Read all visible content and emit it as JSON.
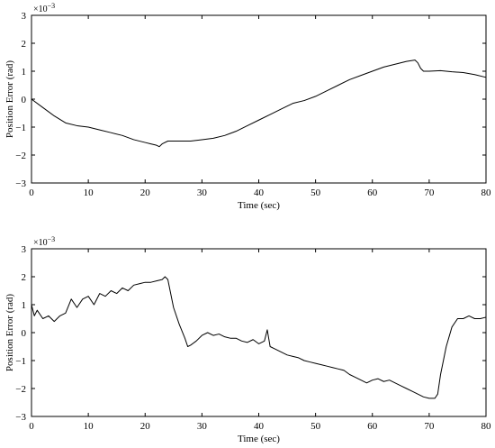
{
  "chart_data": [
    {
      "type": "line",
      "title": "",
      "xlabel": "Time (sec)",
      "ylabel": "Position Error (rad)",
      "y_multiplier": "×10",
      "y_exponent": "−3",
      "xlim": [
        0,
        80
      ],
      "ylim": [
        -3,
        3
      ],
      "xticks": [
        0,
        10,
        20,
        30,
        40,
        50,
        60,
        70,
        80
      ],
      "yticks": [
        -3,
        -2,
        -1,
        0,
        1,
        2,
        3
      ],
      "xtick_labels": [
        "0",
        "10",
        "20",
        "30",
        "40",
        "50",
        "60",
        "70",
        "80"
      ],
      "ytick_labels": [
        "−3",
        "−2",
        "−1",
        "0",
        "1",
        "2",
        "3"
      ],
      "grid": false,
      "series": [
        {
          "x": [
            0,
            2,
            4,
            6,
            8,
            10,
            12,
            14,
            16,
            18,
            20,
            21,
            22,
            22.5,
            23,
            24,
            26,
            28,
            30,
            32,
            34,
            36,
            38,
            40,
            42,
            44,
            46,
            48,
            50,
            52,
            54,
            56,
            58,
            60,
            62,
            64,
            66,
            67.5,
            68,
            68.5,
            69,
            70,
            72,
            74,
            76,
            78,
            80
          ],
          "y": [
            0.0,
            -0.3,
            -0.6,
            -0.85,
            -0.95,
            -1.0,
            -1.1,
            -1.2,
            -1.3,
            -1.45,
            -1.55,
            -1.6,
            -1.65,
            -1.7,
            -1.6,
            -1.5,
            -1.5,
            -1.5,
            -1.45,
            -1.4,
            -1.3,
            -1.15,
            -0.95,
            -0.75,
            -0.55,
            -0.35,
            -0.15,
            -0.05,
            0.1,
            0.3,
            0.5,
            0.7,
            0.85,
            1.0,
            1.15,
            1.25,
            1.35,
            1.4,
            1.3,
            1.1,
            1.0,
            1.0,
            1.02,
            0.98,
            0.95,
            0.88,
            0.78
          ]
        }
      ]
    },
    {
      "type": "line",
      "title": "",
      "xlabel": "Time (sec)",
      "ylabel": "Position Error (rad)",
      "y_multiplier": "×10",
      "y_exponent": "−3",
      "xlim": [
        0,
        80
      ],
      "ylim": [
        -3,
        3
      ],
      "xticks": [
        0,
        10,
        20,
        30,
        40,
        50,
        60,
        70,
        80
      ],
      "yticks": [
        -3,
        -2,
        -1,
        0,
        1,
        2,
        3
      ],
      "xtick_labels": [
        "0",
        "10",
        "20",
        "30",
        "40",
        "50",
        "60",
        "70",
        "80"
      ],
      "ytick_labels": [
        "−3",
        "−2",
        "−1",
        "0",
        "1",
        "2",
        "3"
      ],
      "grid": false,
      "series": [
        {
          "x": [
            0,
            0.5,
            1,
            2,
            3,
            4,
            5,
            6,
            7,
            8,
            9,
            10,
            11,
            12,
            13,
            14,
            15,
            16,
            17,
            18,
            19,
            20,
            21,
            22,
            23,
            23.5,
            24,
            25,
            26,
            27,
            27.5,
            28,
            29,
            30,
            31,
            32,
            33,
            34,
            35,
            36,
            37,
            38,
            39,
            40,
            41,
            41.5,
            42,
            43,
            44,
            45,
            46,
            47,
            48,
            49,
            50,
            51,
            52,
            53,
            54,
            55,
            56,
            57,
            58,
            59,
            60,
            61,
            62,
            63,
            64,
            65,
            66,
            67,
            68,
            69,
            70,
            71,
            71.5,
            72,
            73,
            74,
            75,
            76,
            77,
            78,
            79,
            80
          ],
          "y": [
            1.0,
            0.6,
            0.8,
            0.5,
            0.6,
            0.4,
            0.6,
            0.7,
            1.2,
            0.9,
            1.2,
            1.3,
            1.0,
            1.4,
            1.3,
            1.5,
            1.4,
            1.6,
            1.5,
            1.7,
            1.75,
            1.8,
            1.8,
            1.85,
            1.9,
            2.0,
            1.9,
            0.9,
            0.3,
            -0.2,
            -0.5,
            -0.45,
            -0.3,
            -0.1,
            0.0,
            -0.1,
            -0.05,
            -0.15,
            -0.2,
            -0.2,
            -0.3,
            -0.35,
            -0.25,
            -0.4,
            -0.3,
            0.1,
            -0.5,
            -0.6,
            -0.7,
            -0.8,
            -0.85,
            -0.9,
            -1.0,
            -1.05,
            -1.1,
            -1.15,
            -1.2,
            -1.25,
            -1.3,
            -1.35,
            -1.5,
            -1.6,
            -1.7,
            -1.8,
            -1.7,
            -1.65,
            -1.75,
            -1.7,
            -1.8,
            -1.9,
            -2.0,
            -2.1,
            -2.2,
            -2.3,
            -2.35,
            -2.35,
            -2.2,
            -1.5,
            -0.5,
            0.2,
            0.5,
            0.5,
            0.6,
            0.5,
            0.5,
            0.55
          ]
        }
      ]
    }
  ]
}
